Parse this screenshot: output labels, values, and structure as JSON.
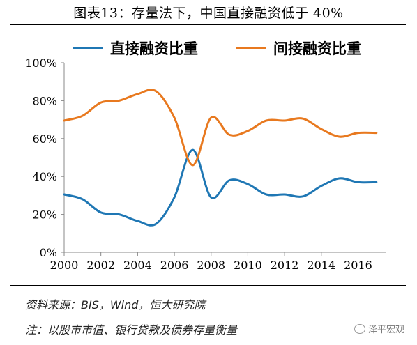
{
  "figure": {
    "title": "图表13：存量法下，中国直接融资低于 40%",
    "source": "资料来源：BIS，Wind，恒大研究院",
    "note": "注：以股市市值、银行贷款及债券存量衡量",
    "watermark": "泽平宏观"
  },
  "chart_data": {
    "type": "line",
    "x": [
      2000,
      2001,
      2002,
      2003,
      2004,
      2005,
      2006,
      2007,
      2008,
      2009,
      2010,
      2011,
      2012,
      2013,
      2014,
      2015,
      2016,
      2017
    ],
    "series": [
      {
        "name": "直接融资比重",
        "color": "#1f77b4",
        "values": [
          30.5,
          28,
          21,
          20,
          16.5,
          15,
          29,
          54,
          29,
          38,
          36,
          30.5,
          30.5,
          29.5,
          35,
          39,
          37,
          37
        ]
      },
      {
        "name": "间接融资比重",
        "color": "#e8791f",
        "values": [
          69.5,
          72,
          79,
          80,
          83.5,
          85,
          71,
          46,
          71,
          62,
          64,
          69.5,
          69.5,
          70.5,
          65,
          61,
          63,
          63
        ]
      }
    ],
    "xticks": [
      "2000",
      "2002",
      "2004",
      "2006",
      "2008",
      "2010",
      "2012",
      "2014",
      "2016"
    ],
    "yticks": [
      "0%",
      "20%",
      "40%",
      "60%",
      "80%",
      "100%"
    ],
    "xlim": [
      2000,
      2017.5
    ],
    "ylim": [
      0,
      100
    ],
    "legend": "top",
    "grid": false
  }
}
